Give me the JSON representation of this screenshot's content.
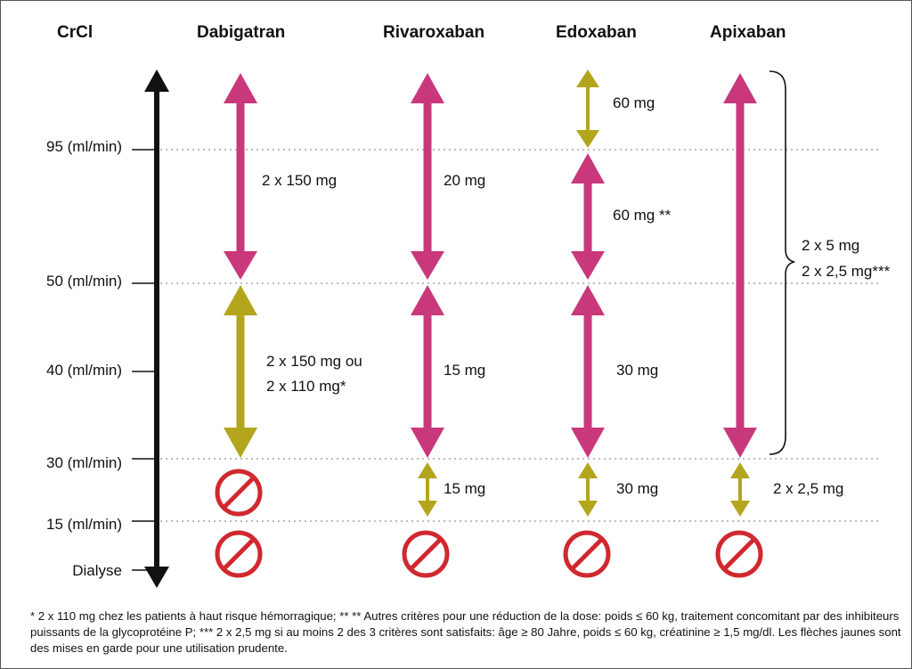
{
  "header": {
    "crcl": "CrCl",
    "dabigatran": "Dabigatran",
    "rivaroxaban": "Rivaroxaban",
    "edoxaban": "Edoxaban",
    "apixaban": "Apixaban"
  },
  "axis": {
    "levels": [
      "95 (ml/min)",
      "50 (ml/min)",
      "40 (ml/min)",
      "30 (ml/min)",
      "15 (ml/min)",
      "Dialyse"
    ]
  },
  "dabigatran": {
    "dose_high": "2 x 150 mg",
    "dose_mid_line1": "2 x 150 mg ou",
    "dose_mid_line2": "2 x 110 mg*"
  },
  "rivaroxaban": {
    "dose_high": "20 mg",
    "dose_mid": "15 mg",
    "dose_low": "15 mg"
  },
  "edoxaban": {
    "dose_top": "60 mg",
    "dose_high": "60 mg **",
    "dose_mid": "30 mg",
    "dose_low": "30 mg"
  },
  "apixaban": {
    "dose_line1": "2 x 5 mg",
    "dose_line2": "2 x 2,5 mg***",
    "dose_low": "2 x 2,5 mg"
  },
  "footnote": "* 2 x 110 mg chez les patients à haut risque hémorragique; ** ** Autres critères pour une réduction de la dose: poids ≤ 60 kg, traitement concomitant par des inhibiteurs puissants de la glycoprotéine P; *** 2 x 2,5 mg si au moins 2 des 3 critères sont satisfaits: âge ≥ 80 Jahre, poids ≤ 60 kg, créatinine ≥ 1,5 mg/dl. Les flèches jaunes sont des mises en garde pour une utilisation prudente.",
  "colors": {
    "magenta": "#C8387A",
    "olive": "#B3A51C",
    "prohibited": "#D0282E",
    "axis": "#111111",
    "gridline": "#BBBBBB"
  },
  "icons": [
    "arrow-up-icon",
    "double-arrow-icon",
    "prohibited-icon",
    "brace-icon"
  ]
}
